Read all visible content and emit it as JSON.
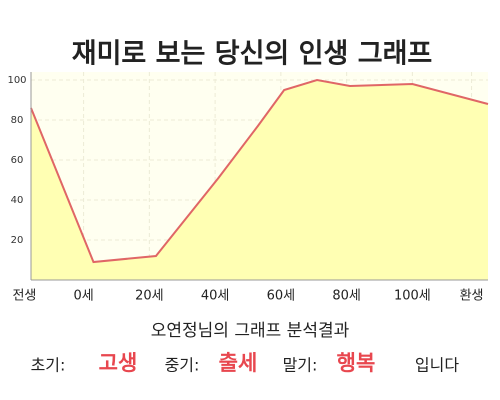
{
  "chart_data": {
    "type": "line",
    "title": "재미로 보는 당신의 인생 그래프",
    "x": [
      -16,
      3,
      22,
      41,
      53,
      61,
      71,
      81,
      100,
      123
    ],
    "values": [
      86,
      9,
      12,
      51,
      77,
      95,
      100,
      97,
      98,
      88
    ],
    "color": "#e06666",
    "fill_color": "#ffffb3",
    "xlim": [
      -16,
      123
    ],
    "xticks": [
      {
        "value": -18,
        "label": "전생"
      },
      {
        "value": 0,
        "label": "0세"
      },
      {
        "value": 20,
        "label": "20세"
      },
      {
        "value": 40,
        "label": "40세"
      },
      {
        "value": 60,
        "label": "60세"
      },
      {
        "value": 80,
        "label": "80세"
      },
      {
        "value": 100,
        "label": "100세"
      },
      {
        "value": 118,
        "label": "환생"
      }
    ],
    "ylim": [
      0,
      100
    ],
    "yticks": [
      20,
      40,
      60,
      80,
      100
    ],
    "grid": true
  },
  "analysis": {
    "heading": "오연정님의 그래프 분석결과",
    "items": [
      {
        "label": "초기:",
        "value": "고생"
      },
      {
        "label": "중기:",
        "value": "출세"
      },
      {
        "label": "말기:",
        "value": "행복"
      }
    ],
    "ending": "입니다"
  }
}
